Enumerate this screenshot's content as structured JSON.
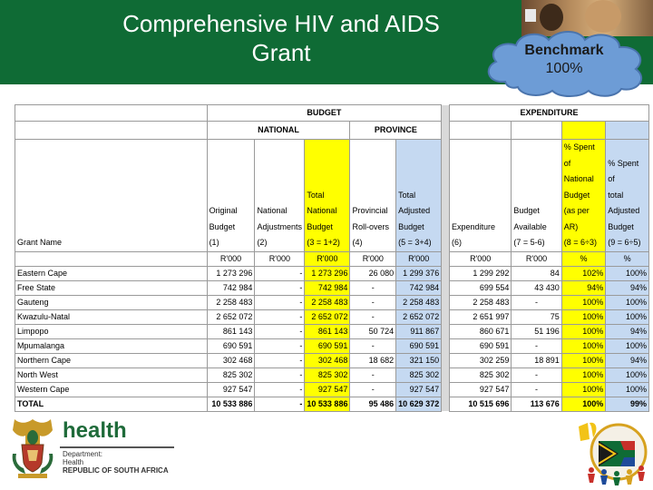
{
  "slide": {
    "title_lines": [
      "Comprehensive HIV and AIDS",
      "Grant"
    ],
    "callout": {
      "label": "Benchmark",
      "value": "100%"
    }
  },
  "table": {
    "budget_header": "BUDGET",
    "expenditure_header": "EXPENDITURE",
    "national_header": "NATIONAL",
    "province_header": "PROVINCE",
    "columns": [
      {
        "lines": [
          "Grant Name"
        ]
      },
      {
        "lines": [
          "Original",
          "Budget",
          "(1)"
        ]
      },
      {
        "lines": [
          "National",
          "Adjustments",
          "(2)"
        ]
      },
      {
        "lines": [
          "Total",
          "National",
          "Budget",
          "(3 = 1+2)"
        ]
      },
      {
        "lines": [
          "Provincial",
          "Roll-overs",
          "(4)"
        ]
      },
      {
        "lines": [
          "Total",
          "Adjusted",
          "Budget",
          "(5 = 3+4)"
        ]
      },
      {
        "lines": [
          "Expenditure",
          "(6)"
        ]
      },
      {
        "lines": [
          "Budget",
          "Available",
          "(7 = 5-6)"
        ]
      },
      {
        "lines": [
          "% Spent of",
          "National",
          "Budget",
          "(as per AR)",
          "(8 = 6÷3)"
        ]
      },
      {
        "lines": [
          "% Spent of",
          "total",
          "Adjusted",
          "Budget",
          "(9 = 6÷5)"
        ]
      }
    ],
    "units": [
      "R'000",
      "R'000",
      "R'000",
      "R'000",
      "R'000",
      "R'000",
      "R'000",
      "%",
      "%"
    ],
    "rows": [
      {
        "name": "Eastern Cape",
        "values": [
          "1 273 296",
          "-",
          "1 273 296",
          "26 080",
          "1 299 376",
          "1 299 292",
          "84",
          "102%",
          "100%"
        ]
      },
      {
        "name": "Free State",
        "values": [
          "742 984",
          "-",
          "742 984",
          "-",
          "742 984",
          "699 554",
          "43 430",
          "94%",
          "94%"
        ]
      },
      {
        "name": "Gauteng",
        "values": [
          "2 258 483",
          "-",
          "2 258 483",
          "-",
          "2 258 483",
          "2 258 483",
          "-",
          "100%",
          "100%"
        ]
      },
      {
        "name": "Kwazulu-Natal",
        "values": [
          "2 652 072",
          "-",
          "2 652 072",
          "-",
          "2 652 072",
          "2 651 997",
          "75",
          "100%",
          "100%"
        ]
      },
      {
        "name": "Limpopo",
        "values": [
          "861 143",
          "-",
          "861 143",
          "50 724",
          "911 867",
          "860 671",
          "51 196",
          "100%",
          "94%"
        ]
      },
      {
        "name": "Mpumalanga",
        "values": [
          "690 591",
          "-",
          "690 591",
          "-",
          "690 591",
          "690 591",
          "-",
          "100%",
          "100%"
        ]
      },
      {
        "name": "Northern Cape",
        "values": [
          "302 468",
          "-",
          "302 468",
          "18 682",
          "321 150",
          "302 259",
          "18 891",
          "100%",
          "94%"
        ]
      },
      {
        "name": "North West",
        "values": [
          "825 302",
          "-",
          "825 302",
          "-",
          "825 302",
          "825 302",
          "-",
          "100%",
          "100%"
        ]
      },
      {
        "name": "Western Cape",
        "values": [
          "927 547",
          "-",
          "927 547",
          "-",
          "927 547",
          "927 547",
          "-",
          "100%",
          "100%"
        ]
      }
    ],
    "total": {
      "name": "TOTAL",
      "values": [
        "10 533 886",
        "-",
        "10 533 886",
        "95 486",
        "10 629 372",
        "10 515 696",
        "113 676",
        "100%",
        "99%"
      ]
    }
  },
  "footer": {
    "logo_word": "health",
    "dept_lines": [
      "Department:",
      "Health"
    ],
    "country": "REPUBLIC OF SOUTH AFRICA"
  }
}
